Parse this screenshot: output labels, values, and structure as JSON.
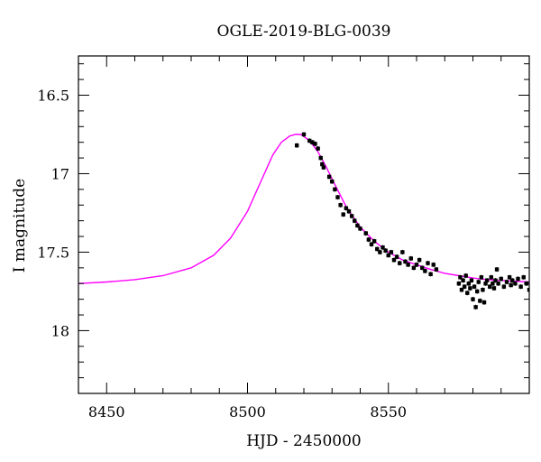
{
  "chart_data": {
    "type": "scatter",
    "title": "OGLE-2019-BLG-0039",
    "xlabel": "HJD - 2450000",
    "ylabel": "I magnitude",
    "xlim": [
      8440,
      8600
    ],
    "ylim": [
      18.4,
      16.25
    ],
    "y_inverted": true,
    "grid": false,
    "x_ticks": [
      8450,
      8500,
      8550
    ],
    "x_tick_labels": [
      "8450",
      "8500",
      "8550"
    ],
    "y_ticks": [
      16.5,
      17,
      17.5,
      18
    ],
    "y_tick_labels": [
      "16.5",
      "17",
      "17.5",
      "18"
    ],
    "series": [
      {
        "kind": "points_with_errorbars",
        "color": "#000000",
        "error": 0.015,
        "points": [
          [
            8517.5,
            16.82
          ],
          [
            8520,
            16.75
          ],
          [
            8522,
            16.79
          ],
          [
            8523,
            16.8
          ],
          [
            8524,
            16.81
          ],
          [
            8525,
            16.84
          ],
          [
            8526,
            16.9
          ],
          [
            8526.5,
            16.94
          ],
          [
            8527,
            16.96
          ],
          [
            8529,
            17.02
          ],
          [
            8530,
            17.05
          ],
          [
            8531,
            17.1
          ],
          [
            8532,
            17.15
          ],
          [
            8533,
            17.2
          ],
          [
            8534,
            17.26
          ],
          [
            8535,
            17.22
          ],
          [
            8536,
            17.24
          ],
          [
            8537,
            17.27
          ],
          [
            8538,
            17.3
          ],
          [
            8539,
            17.33
          ],
          [
            8540,
            17.35
          ],
          [
            8542,
            17.38
          ],
          [
            8543,
            17.42
          ],
          [
            8544,
            17.45
          ],
          [
            8545,
            17.43
          ],
          [
            8546,
            17.48
          ],
          [
            8547,
            17.5
          ],
          [
            8548,
            17.47
          ],
          [
            8549,
            17.49
          ],
          [
            8550,
            17.52
          ],
          [
            8551,
            17.5
          ],
          [
            8552,
            17.55
          ],
          [
            8553,
            17.53
          ],
          [
            8554,
            17.57
          ],
          [
            8555,
            17.5
          ],
          [
            8556,
            17.56
          ],
          [
            8557,
            17.58
          ],
          [
            8558,
            17.54
          ],
          [
            8559,
            17.6
          ],
          [
            8560,
            17.58
          ],
          [
            8561,
            17.55
          ],
          [
            8562,
            17.6
          ],
          [
            8563,
            17.62
          ],
          [
            8564,
            17.57
          ],
          [
            8565,
            17.64
          ],
          [
            8566,
            17.58
          ],
          [
            8567,
            17.61
          ],
          [
            8575,
            17.7
          ],
          [
            8575.5,
            17.66
          ],
          [
            8576,
            17.74
          ],
          [
            8576.5,
            17.68
          ],
          [
            8577,
            17.72
          ],
          [
            8577.5,
            17.65
          ],
          [
            8578,
            17.76
          ],
          [
            8578.5,
            17.7
          ],
          [
            8579,
            17.73
          ],
          [
            8579.5,
            17.68
          ],
          [
            8580,
            17.8
          ],
          [
            8580.5,
            17.72
          ],
          [
            8581,
            17.85
          ],
          [
            8581.5,
            17.75
          ],
          [
            8582,
            17.69
          ],
          [
            8582.5,
            17.81
          ],
          [
            8583,
            17.66
          ],
          [
            8583.5,
            17.74
          ],
          [
            8584,
            17.82
          ],
          [
            8584.5,
            17.7
          ],
          [
            8585,
            17.68
          ],
          [
            8586,
            17.72
          ],
          [
            8586.5,
            17.66
          ],
          [
            8587,
            17.7
          ],
          [
            8587.5,
            17.73
          ],
          [
            8588,
            17.68
          ],
          [
            8588.5,
            17.61
          ],
          [
            8589,
            17.7
          ],
          [
            8590,
            17.67
          ],
          [
            8591,
            17.72
          ],
          [
            8592,
            17.69
          ],
          [
            8593,
            17.66
          ],
          [
            8593.5,
            17.71
          ],
          [
            8594,
            17.68
          ],
          [
            8595,
            17.7
          ],
          [
            8596,
            17.67
          ],
          [
            8597,
            17.72
          ],
          [
            8598,
            17.66
          ],
          [
            8599,
            17.7
          ],
          [
            8600,
            17.74
          ]
        ]
      },
      {
        "kind": "model_curve",
        "color": "#ff00ff",
        "points": [
          [
            8440,
            17.7
          ],
          [
            8450,
            17.69
          ],
          [
            8460,
            17.675
          ],
          [
            8470,
            17.65
          ],
          [
            8480,
            17.6
          ],
          [
            8488,
            17.52
          ],
          [
            8494,
            17.41
          ],
          [
            8500,
            17.24
          ],
          [
            8505,
            17.04
          ],
          [
            8509,
            16.88
          ],
          [
            8512,
            16.8
          ],
          [
            8515,
            16.76
          ],
          [
            8517,
            16.75
          ],
          [
            8519,
            16.75
          ],
          [
            8522,
            16.79
          ],
          [
            8525,
            16.86
          ],
          [
            8528,
            16.96
          ],
          [
            8531,
            17.07
          ],
          [
            8535,
            17.21
          ],
          [
            8540,
            17.34
          ],
          [
            8545,
            17.43
          ],
          [
            8550,
            17.5
          ],
          [
            8555,
            17.55
          ],
          [
            8560,
            17.58
          ],
          [
            8565,
            17.61
          ],
          [
            8570,
            17.635
          ],
          [
            8575,
            17.65
          ],
          [
            8580,
            17.665
          ],
          [
            8585,
            17.675
          ],
          [
            8590,
            17.68
          ],
          [
            8595,
            17.685
          ],
          [
            8600,
            17.69
          ]
        ]
      }
    ]
  }
}
